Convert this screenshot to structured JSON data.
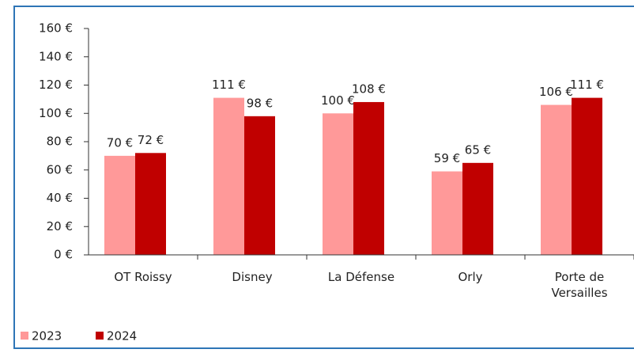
{
  "chart_data": {
    "type": "bar",
    "categories": [
      "OT Roissy",
      "Disney",
      "La Défense",
      "Orly",
      "Porte de Versailles"
    ],
    "series": [
      {
        "name": "2023",
        "color": "#ff9999",
        "values": [
          70,
          111,
          100,
          59,
          106
        ],
        "value_labels": [
          "70 €",
          "111 €",
          "100 €",
          "59 €",
          "106 €"
        ]
      },
      {
        "name": "2024",
        "color": "#c00000",
        "values": [
          72,
          98,
          108,
          65,
          111
        ],
        "value_labels": [
          "72 €",
          "98 €",
          "108 €",
          "65 €",
          "111 €"
        ]
      }
    ],
    "ylim": [
      0,
      160
    ],
    "yticks": [
      {
        "value": 0,
        "label": "0 €"
      },
      {
        "value": 20,
        "label": "20 €"
      },
      {
        "value": 40,
        "label": "40 €"
      },
      {
        "value": 60,
        "label": "60 €"
      },
      {
        "value": 80,
        "label": "80 €"
      },
      {
        "value": 100,
        "label": "100 €"
      },
      {
        "value": 120,
        "label": "120 €"
      },
      {
        "value": 140,
        "label": "140 €"
      },
      {
        "value": 160,
        "label": "160 €"
      }
    ],
    "legend": "bottom-left"
  }
}
